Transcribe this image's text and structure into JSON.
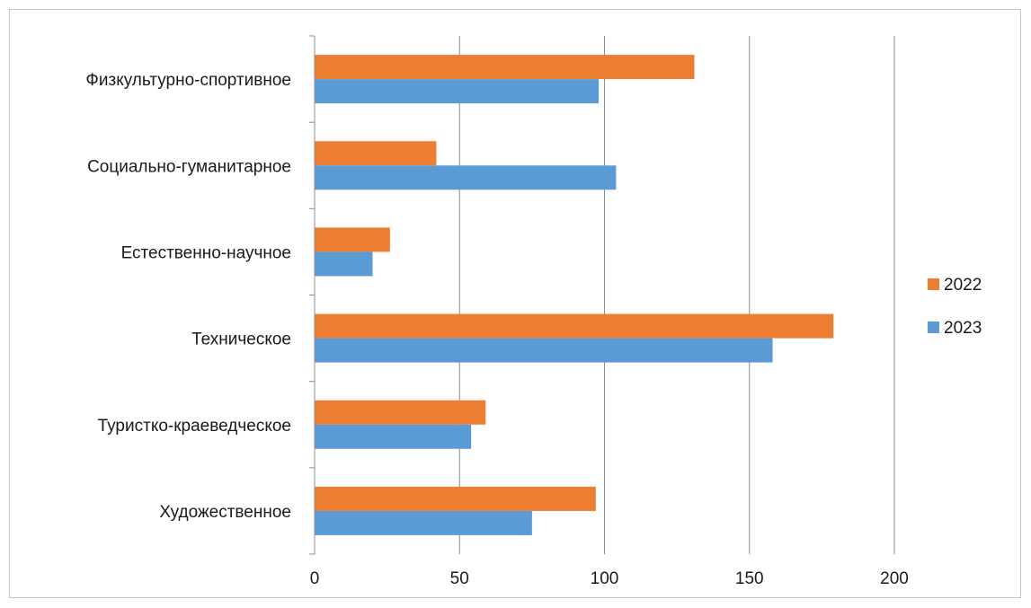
{
  "chart_data": {
    "type": "bar",
    "orientation": "horizontal",
    "categories": [
      "Художественное",
      "Туристко-краеведческое",
      "Техническое",
      "Естественно-научное",
      "Социально-гуманитарное",
      "Физкультурно-спортивное"
    ],
    "series": [
      {
        "name": "2022",
        "color": "#ED7D31",
        "values": [
          97,
          59,
          179,
          26,
          42,
          131
        ]
      },
      {
        "name": "2023",
        "color": "#5B9BD5",
        "values": [
          75,
          54,
          158,
          20,
          104,
          98
        ]
      }
    ],
    "xlim": [
      0,
      200
    ],
    "xticks": [
      "0",
      "50",
      "100",
      "150",
      "200"
    ],
    "grid": true,
    "legend_position": "right"
  }
}
